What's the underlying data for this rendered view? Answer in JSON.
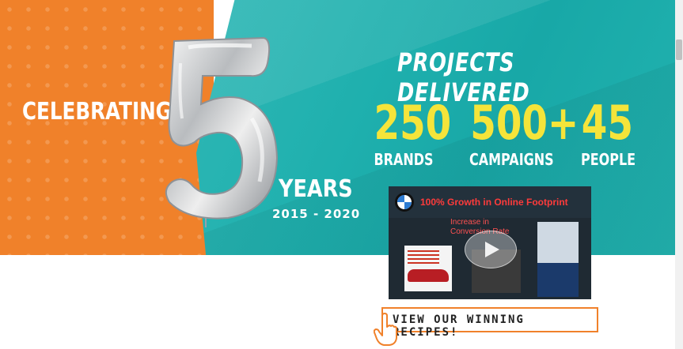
{
  "hero": {
    "celebrating": "CELEBRATING",
    "years": "YEARS",
    "range": "2015 - 2020",
    "big_number": "5",
    "projects_title": "PROJECTS DELIVERED",
    "stats": [
      {
        "value": "250",
        "label": "BRANDS"
      },
      {
        "value": "500+",
        "label": "CAMPAIGNS"
      },
      {
        "value": "45",
        "label": "PEOPLE"
      }
    ],
    "colors": {
      "orange": "#f0812a",
      "teal": "#1fb0ae",
      "stat_yellow": "#f5e43a"
    }
  },
  "video": {
    "title": "100% Growth in Online Footprint",
    "subtitle": "Increase in Conversion Rate",
    "brand_icon": "bmw-logo-icon",
    "play_icon": "play-icon"
  },
  "cta": {
    "label": "VIEW OUR WINNING RECIPES!",
    "icon": "pointer-hand-icon"
  }
}
